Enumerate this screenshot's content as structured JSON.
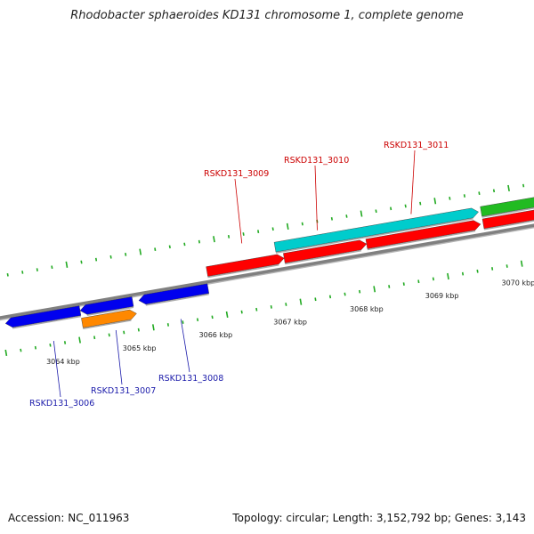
{
  "title": "Rhodobacter sphaeroides KD131 chromosome 1, complete genome",
  "footer": {
    "accession": "Accession: NC_011963",
    "topology": "Topology: circular; Length: 3,152,792 bp; Genes: 3,143"
  },
  "colors": {
    "backbone": "#808080",
    "forward_gene": "#ff0000",
    "reverse_gene": "#0000ee",
    "cyan_feature": "#00cccc",
    "orange_feature": "#ff8800",
    "green_feature": "#22bb22",
    "tick": "#22aa22",
    "label_forward": "#cc0000",
    "label_reverse": "#1a1aaa"
  },
  "ticks": [
    "3064 kbp",
    "3065 kbp",
    "3066 kbp",
    "3067 kbp",
    "3068 kbp",
    "3069 kbp",
    "3070 kbp"
  ],
  "gene_labels_top": [
    "RSKD131_3009",
    "RSKD131_3010",
    "RSKD131_3011"
  ],
  "gene_labels_bottom": [
    "RSKD131_3006",
    "RSKD131_3007",
    "RSKD131_3008"
  ]
}
